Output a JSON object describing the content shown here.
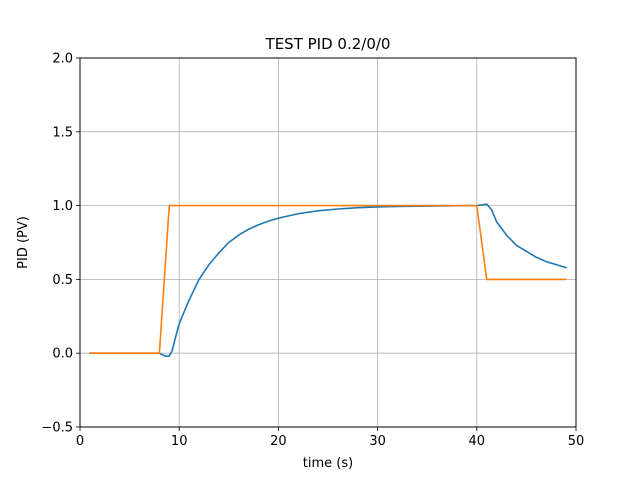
{
  "chart_data": {
    "type": "line",
    "title": "TEST PID 0.2/0/0",
    "xlabel": "time (s)",
    "ylabel": "PID (PV)",
    "xlim": [
      0,
      50
    ],
    "ylim": [
      -0.5,
      2.0
    ],
    "xticks": [
      0,
      10,
      20,
      30,
      40,
      50
    ],
    "xtick_labels": [
      "0",
      "10",
      "20",
      "30",
      "40",
      "50"
    ],
    "yticks": [
      -0.5,
      0.0,
      0.5,
      1.0,
      1.5,
      2.0
    ],
    "ytick_labels": [
      "−0.5",
      "0.0",
      "0.5",
      "1.0",
      "1.5",
      "2.0"
    ],
    "grid": true,
    "series": [
      {
        "color": "#1f77b4",
        "x": [
          1,
          2,
          3,
          4,
          5,
          6,
          7,
          8,
          8.3,
          8.6,
          9.0,
          9.3,
          9.6,
          10,
          10.5,
          11,
          12,
          13,
          14,
          15,
          16,
          17,
          18,
          19,
          20,
          22,
          24,
          26,
          28,
          30,
          32,
          34,
          36,
          38,
          40,
          40.5,
          41,
          41.5,
          42,
          43,
          44,
          45,
          46,
          47,
          48,
          49
        ],
        "y": [
          0,
          0,
          0,
          0,
          0,
          0,
          0,
          0,
          -0.01,
          -0.02,
          -0.02,
          0.02,
          0.1,
          0.2,
          0.28,
          0.36,
          0.5,
          0.6,
          0.68,
          0.75,
          0.8,
          0.84,
          0.87,
          0.895,
          0.915,
          0.945,
          0.965,
          0.977,
          0.986,
          0.991,
          0.994,
          0.996,
          0.998,
          0.999,
          1.0,
          1.005,
          1.01,
          0.97,
          0.89,
          0.8,
          0.73,
          0.69,
          0.65,
          0.62,
          0.6,
          0.58
        ]
      },
      {
        "color": "#ff7f0e",
        "x": [
          1,
          8,
          9,
          40,
          41,
          49
        ],
        "y": [
          0,
          0,
          1.0,
          1.0,
          0.5,
          0.5
        ]
      }
    ]
  }
}
